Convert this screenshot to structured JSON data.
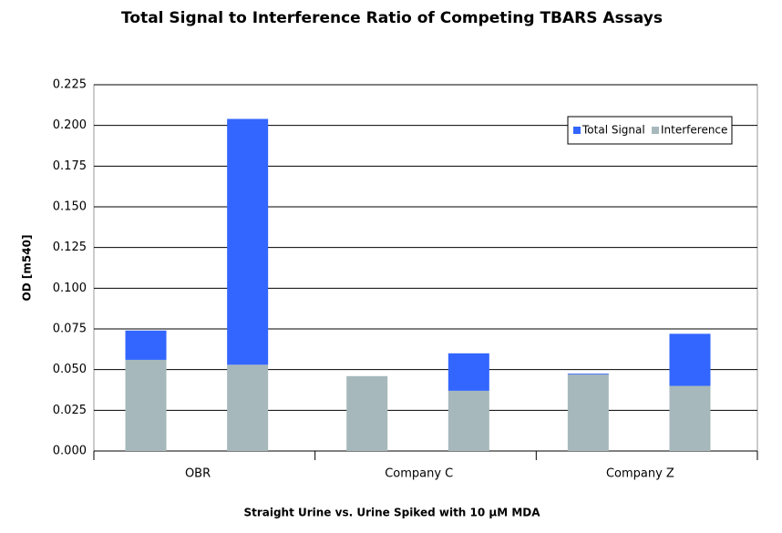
{
  "chart_data": {
    "type": "stacked-bar",
    "title": "Total Signal to Interference Ratio of Competing TBARS Assays",
    "x_label": "Straight Urine vs. Urine Spiked with 10 μM MDA",
    "y_label": "OD [m540]",
    "categories": [
      "OBR",
      null,
      "Company C",
      null,
      "Company Z",
      null
    ],
    "series": [
      {
        "name": "Interference",
        "color": "#a6b8bb",
        "values": [
          0.056,
          0.053,
          0.046,
          0.037,
          0.047,
          0.04
        ]
      },
      {
        "name": "Total Signal",
        "color": "#3366ff",
        "values": [
          0.018,
          0.151,
          0.0,
          0.023,
          0.0005,
          0.032
        ]
      }
    ],
    "ylim": [
      0,
      0.225
    ],
    "yticks": [
      {
        "value": 0,
        "label": "0.000"
      },
      {
        "value": 0.025,
        "label": "0.025"
      },
      {
        "value": 0.05,
        "label": "0.050"
      },
      {
        "value": 0.075,
        "label": "0.075"
      },
      {
        "value": 0.1,
        "label": "0.100"
      },
      {
        "value": 0.125,
        "label": "0.125"
      },
      {
        "value": 0.15,
        "label": "0.150"
      },
      {
        "value": 0.175,
        "label": "0.175"
      },
      {
        "value": 0.2,
        "label": "0.200"
      },
      {
        "value": 0.225,
        "label": "0.225"
      }
    ],
    "grid": true,
    "legend": "upper-right"
  }
}
